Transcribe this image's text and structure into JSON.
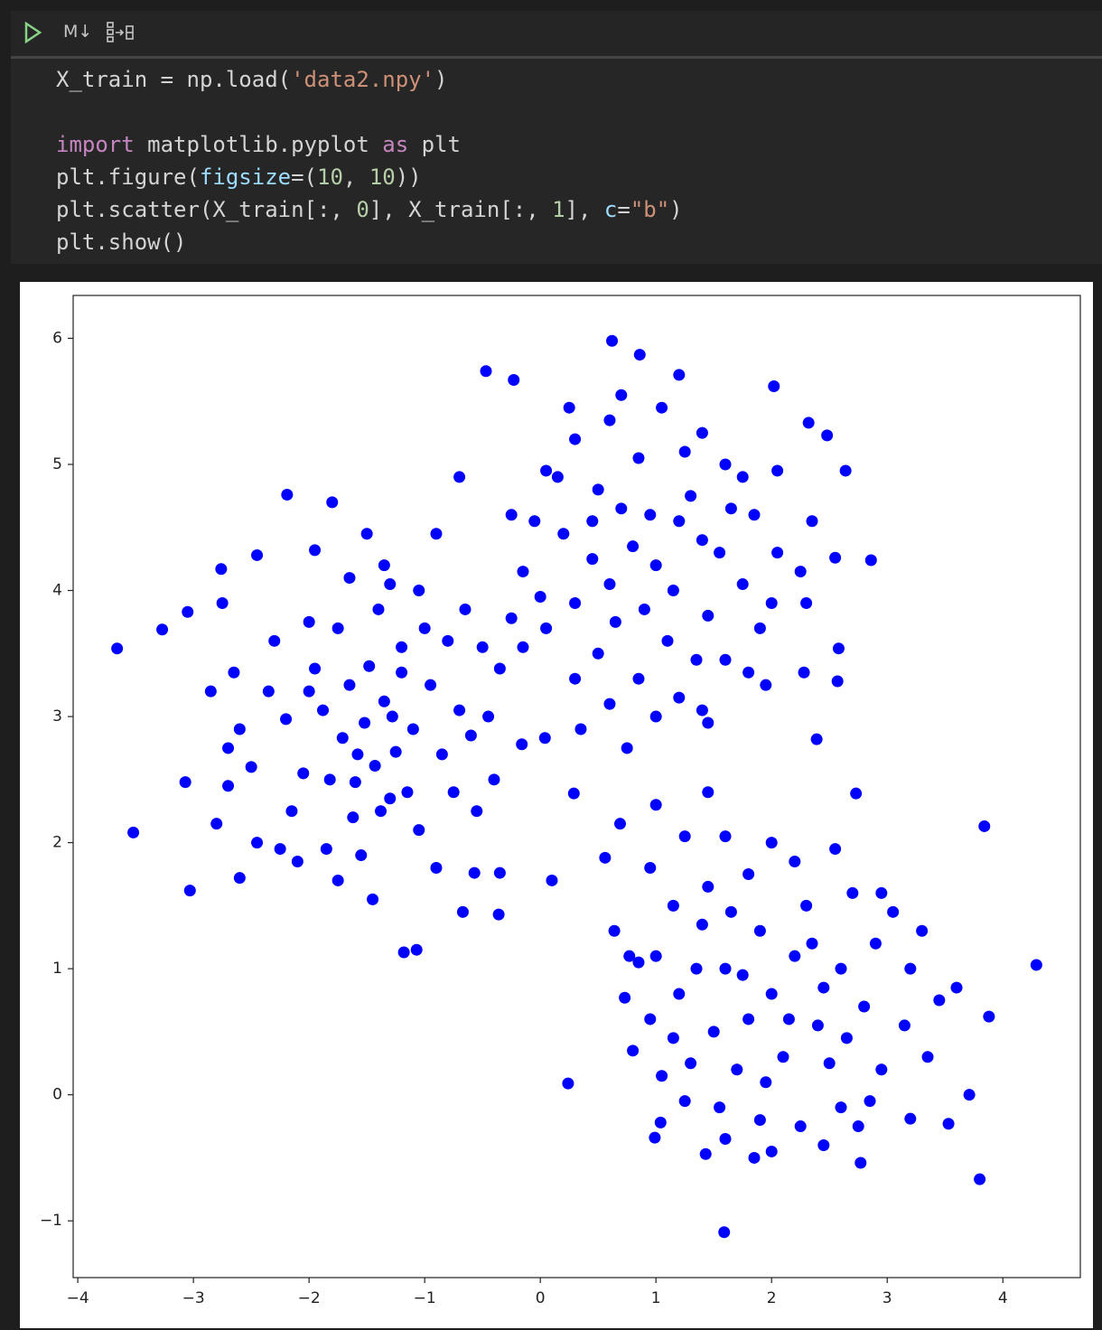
{
  "toolbar": {
    "markdown_label": "M↓"
  },
  "code": {
    "lines": [
      [
        "X_train = np.load(",
        "'data2.npy'",
        ")"
      ],
      [
        "import",
        " matplotlib.pyplot ",
        "as",
        " plt"
      ],
      [
        "plt.figure(",
        "figsize",
        "=(",
        "10",
        ", ",
        "10",
        "))"
      ],
      [
        "plt.scatter(X_train[:, ",
        "0",
        "], X_train[:, ",
        "1",
        "], ",
        "c",
        "=",
        "\"b\"",
        ")"
      ],
      [
        "plt.show()"
      ]
    ]
  },
  "chart_data": {
    "type": "scatter",
    "color": "#0000ff",
    "xlim": [
      -4.04,
      4.67
    ],
    "ylim": [
      -1.45,
      6.34
    ],
    "xticks": [
      {
        "value": -4,
        "label": "−4"
      },
      {
        "value": -3,
        "label": "−3"
      },
      {
        "value": -2,
        "label": "−2"
      },
      {
        "value": -1,
        "label": "−1"
      },
      0,
      1,
      2,
      3,
      4
    ],
    "yticks": [
      {
        "value": -1,
        "label": "−1"
      },
      0,
      1,
      2,
      3,
      4,
      5,
      6
    ],
    "x": [
      -3.66,
      -3.52,
      -3.27,
      -3.05,
      -3.07,
      -3.03,
      -2.76,
      -2.19,
      -1.8,
      -1.18,
      -1.07,
      -0.47,
      -0.23,
      0.62,
      0.86,
      1.2,
      2.02,
      2.32,
      2.48,
      2.64,
      2.86,
      2.55,
      2.58,
      2.57,
      2.28,
      2.39,
      2.73,
      3.84,
      4.29,
      3.88,
      3.8,
      3.71,
      3.53,
      2.77,
      1.59,
      0.24,
      0.1,
      0.29,
      0.56,
      0.69,
      0.64,
      0.77,
      0.73,
      0.99,
      1.04,
      1.43,
      1.85,
      3.2,
      -0.36,
      -0.67,
      -0.35,
      -0.57,
      0.04,
      -0.16,
      -0.7,
      -1.52,
      -1.43,
      -1.6,
      -1.35,
      -1.71,
      -1.25,
      -1.88,
      -1.48,
      -1.1,
      -2.05,
      -1.62,
      -1.3,
      -2.2,
      -1.95,
      -1.2,
      -0.95,
      -0.85,
      -1.75,
      -1.4,
      -2.35,
      -2.5,
      -2.6,
      -2.15,
      -1.85,
      -1.55,
      -1.05,
      -0.75,
      -0.7,
      -0.6,
      -1.0,
      -1.3,
      -1.65,
      -2.0,
      -2.3,
      -2.65,
      -2.7,
      -2.45,
      -2.1,
      -1.75,
      -1.45,
      -0.9,
      -0.55,
      -0.45,
      -0.5,
      -0.8,
      -1.05,
      -1.5,
      -1.95,
      -2.45,
      -2.75,
      -2.85,
      -2.8,
      -2.6,
      -2.25,
      -1.38,
      -1.58,
      -1.28,
      -1.82,
      -2.0,
      -1.15,
      -0.4,
      -0.35,
      -0.25,
      -0.9,
      -1.35,
      -2.7,
      -1.65,
      -1.2,
      -0.65,
      1.0,
      1.2,
      0.8,
      0.6,
      1.4,
      0.9,
      1.1,
      0.45,
      0.7,
      1.3,
      1.55,
      1.75,
      0.3,
      0.2,
      0.5,
      0.85,
      1.2,
      1.6,
      1.9,
      1.85,
      1.6,
      1.25,
      0.85,
      0.5,
      0.15,
      -0.05,
      0.05,
      0.3,
      0.6,
      1.0,
      1.4,
      1.8,
      2.0,
      2.05,
      1.75,
      1.4,
      1.05,
      0.6,
      0.3,
      0.05,
      -0.25,
      -0.15,
      0.0,
      0.35,
      0.75,
      1.45,
      1.95,
      2.3,
      2.35,
      2.05,
      1.15,
      0.95,
      0.65,
      1.45,
      1.65,
      0.25,
      0.7,
      -0.15,
      2.25,
      0.45,
      1.35,
      2.0,
      2.2,
      1.8,
      2.4,
      1.6,
      2.1,
      2.6,
      1.9,
      2.3,
      1.5,
      1.7,
      2.5,
      2.8,
      2.9,
      1.4,
      1.2,
      1.3,
      1.55,
      1.9,
      2.25,
      2.6,
      2.95,
      3.15,
      3.2,
      3.05,
      2.7,
      2.2,
      1.8,
      1.45,
      1.15,
      1.0,
      0.95,
      1.05,
      1.25,
      1.6,
      2.0,
      2.45,
      2.75,
      3.35,
      3.45,
      3.3,
      2.95,
      2.55,
      2.0,
      1.6,
      1.25,
      0.95,
      0.85,
      0.8,
      1.35,
      1.75,
      2.15,
      2.45,
      2.65,
      2.35,
      1.95,
      1.65,
      1.0,
      1.45,
      3.6,
      1.15,
      2.85
    ],
    "y": [
      3.54,
      2.08,
      3.69,
      3.83,
      2.48,
      1.62,
      4.17,
      4.76,
      4.7,
      1.13,
      1.15,
      5.74,
      5.67,
      5.98,
      5.87,
      5.71,
      5.62,
      5.33,
      5.23,
      4.95,
      4.24,
      4.26,
      3.54,
      3.28,
      3.35,
      2.82,
      2.39,
      2.13,
      1.03,
      0.62,
      -0.67,
      0.0,
      -0.23,
      -0.54,
      -1.09,
      0.09,
      1.7,
      2.39,
      1.88,
      2.15,
      1.3,
      1.1,
      0.77,
      -0.34,
      -0.22,
      -0.47,
      -0.5,
      -0.19,
      1.43,
      1.45,
      1.76,
      1.76,
      2.83,
      2.78,
      4.9,
      2.95,
      2.61,
      2.48,
      3.12,
      2.83,
      2.72,
      3.05,
      3.4,
      2.9,
      2.55,
      2.2,
      2.35,
      2.98,
      3.38,
      3.55,
      3.25,
      2.7,
      3.7,
      3.85,
      3.2,
      2.6,
      2.9,
      2.25,
      1.95,
      1.9,
      2.1,
      2.4,
      3.05,
      2.85,
      3.7,
      4.05,
      4.1,
      3.75,
      3.6,
      3.35,
      2.45,
      2.0,
      1.85,
      1.7,
      1.55,
      1.8,
      2.25,
      3.0,
      3.55,
      3.6,
      4.0,
      4.45,
      4.32,
      4.28,
      3.9,
      3.2,
      2.15,
      1.72,
      1.95,
      2.25,
      2.7,
      3.0,
      2.5,
      3.2,
      2.4,
      2.5,
      3.38,
      3.78,
      4.45,
      4.2,
      2.75,
      3.25,
      3.35,
      3.85,
      4.2,
      4.55,
      4.35,
      4.05,
      4.4,
      3.85,
      3.6,
      4.25,
      4.65,
      4.75,
      4.3,
      4.05,
      3.9,
      4.45,
      3.5,
      3.3,
      3.15,
      3.45,
      3.7,
      4.6,
      5.0,
      5.1,
      5.05,
      4.8,
      4.9,
      4.55,
      3.7,
      3.3,
      3.1,
      3.0,
      3.05,
      3.35,
      3.9,
      4.3,
      4.9,
      5.25,
      5.45,
      5.35,
      5.2,
      4.95,
      4.6,
      4.15,
      3.95,
      2.9,
      2.75,
      2.95,
      3.25,
      3.9,
      4.55,
      4.95,
      4.0,
      4.6,
      3.75,
      3.8,
      4.65,
      5.45,
      5.55,
      3.55,
      4.15,
      4.55,
      3.45,
      0.8,
      1.1,
      0.6,
      0.55,
      1.0,
      0.3,
      1.0,
      1.3,
      1.5,
      0.5,
      0.2,
      0.25,
      0.7,
      1.2,
      1.35,
      0.8,
      0.25,
      -0.1,
      -0.2,
      -0.25,
      -0.1,
      0.2,
      0.55,
      1.0,
      1.45,
      1.6,
      1.85,
      1.75,
      1.65,
      1.5,
      1.1,
      0.6,
      0.15,
      -0.05,
      -0.35,
      -0.45,
      -0.4,
      -0.25,
      0.3,
      0.75,
      1.3,
      1.6,
      1.95,
      2.0,
      2.05,
      2.05,
      1.8,
      1.05,
      0.35,
      1.0,
      0.95,
      0.6,
      0.85,
      0.45,
      1.2,
      0.1,
      1.45,
      2.3,
      2.4,
      0.85,
      0.45,
      -0.05
    ]
  }
}
